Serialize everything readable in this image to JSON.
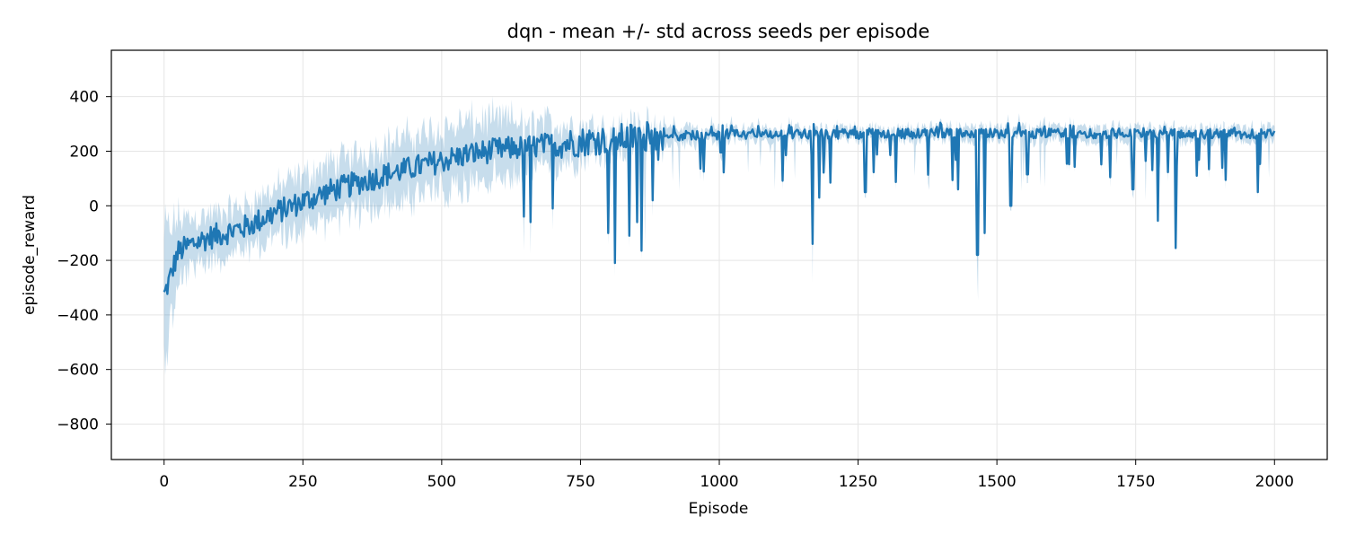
{
  "chart_data": {
    "type": "line",
    "title": "dqn - mean +/- std across seeds per episode",
    "xlabel": "Episode",
    "ylabel": "episode_reward",
    "xlim": [
      -95,
      2095
    ],
    "ylim": [
      -930,
      570
    ],
    "xticks": [
      0,
      250,
      500,
      750,
      1000,
      1250,
      1500,
      1750,
      2000
    ],
    "xtick_labels": [
      "0",
      "250",
      "500",
      "750",
      "1000",
      "1250",
      "1500",
      "1750",
      "2000"
    ],
    "yticks": [
      -800,
      -600,
      -400,
      -200,
      0,
      200,
      400
    ],
    "ytick_labels": [
      "−800",
      "−600",
      "−400",
      "−200",
      "0",
      "200",
      "400"
    ],
    "grid": true,
    "colors": {
      "mean_line": "#1f77b4",
      "std_band": "#1f77b4",
      "grid": "#e5e5e5"
    },
    "series": [
      {
        "label": "mean",
        "x": [
          0,
          10,
          25,
          50,
          75,
          100,
          150,
          200,
          250,
          300,
          350,
          400,
          450,
          500,
          550,
          600,
          650,
          700,
          750,
          800,
          850,
          900,
          950,
          1000,
          1100,
          1200,
          1300,
          1400,
          1500,
          1600,
          1700,
          1800,
          1900,
          2000
        ],
        "y": [
          -330,
          -270,
          -170,
          -140,
          -120,
          -105,
          -75,
          -25,
          15,
          55,
          85,
          115,
          140,
          165,
          190,
          205,
          215,
          225,
          235,
          245,
          250,
          255,
          258,
          260,
          262,
          263,
          264,
          265,
          265,
          265,
          265,
          264,
          264,
          263
        ],
        "std": [
          220,
          170,
          120,
          90,
          80,
          75,
          75,
          85,
          90,
          95,
          100,
          105,
          110,
          110,
          110,
          105,
          95,
          75,
          55,
          50,
          45,
          35,
          30,
          25,
          22,
          22,
          22,
          22,
          25,
          25,
          25,
          25,
          25,
          25
        ]
      }
    ],
    "dips": [
      {
        "x": 812,
        "y": -210
      },
      {
        "x": 800,
        "y": -100
      },
      {
        "x": 860,
        "y": -165
      },
      {
        "x": 838,
        "y": -110
      },
      {
        "x": 852,
        "y": -60
      },
      {
        "x": 648,
        "y": -40
      },
      {
        "x": 660,
        "y": -60
      },
      {
        "x": 700,
        "y": -10
      },
      {
        "x": 880,
        "y": 20
      },
      {
        "x": 1168,
        "y": -140
      },
      {
        "x": 1180,
        "y": 30
      },
      {
        "x": 1465,
        "y": -180
      },
      {
        "x": 1478,
        "y": -100
      },
      {
        "x": 1430,
        "y": 60
      },
      {
        "x": 1525,
        "y": 0
      },
      {
        "x": 1790,
        "y": -55
      },
      {
        "x": 1822,
        "y": -155
      },
      {
        "x": 1745,
        "y": 60
      },
      {
        "x": 1860,
        "y": 110
      },
      {
        "x": 1970,
        "y": 50
      },
      {
        "x": 1263,
        "y": 50
      },
      {
        "x": 1555,
        "y": 115
      }
    ]
  }
}
